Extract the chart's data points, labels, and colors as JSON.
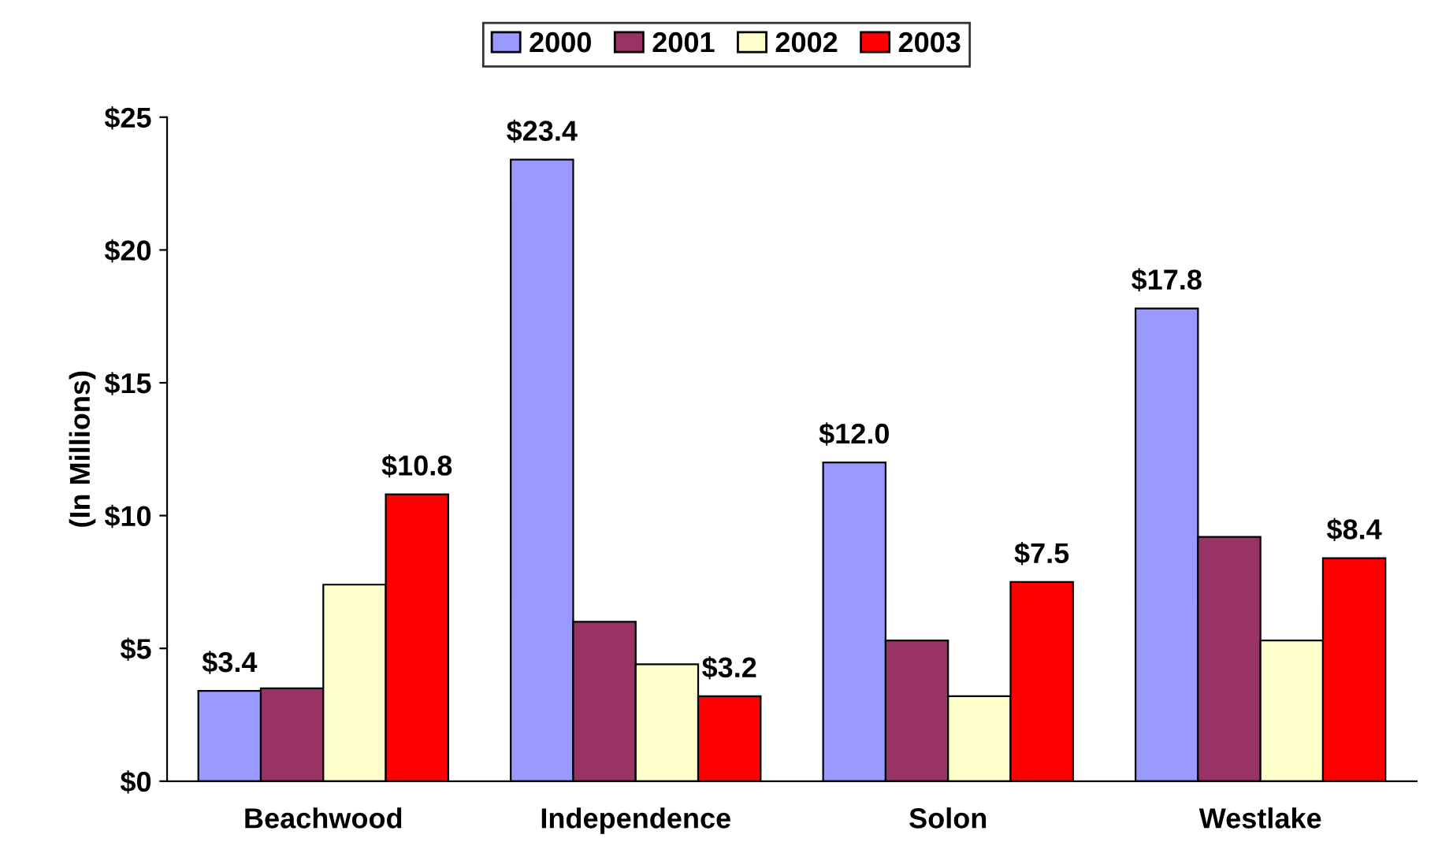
{
  "chart_data": {
    "type": "bar",
    "ylabel": "(In Millions)",
    "categories": [
      "Beachwood",
      "Independence",
      "Solon",
      "Westlake"
    ],
    "series": [
      {
        "name": "2000",
        "color": "#9999ff",
        "values": [
          3.4,
          23.4,
          12.0,
          17.8
        ],
        "value_labels": [
          "$3.4",
          "$23.4",
          "$12.0",
          "$17.8"
        ]
      },
      {
        "name": "2001",
        "color": "#993366",
        "values": [
          3.5,
          6.0,
          5.3,
          9.2
        ],
        "value_labels": [
          null,
          null,
          null,
          null
        ]
      },
      {
        "name": "2002",
        "color": "#ffffcc",
        "values": [
          7.4,
          4.4,
          3.2,
          5.3
        ],
        "value_labels": [
          null,
          null,
          null,
          null
        ]
      },
      {
        "name": "2003",
        "color": "#ff0000",
        "values": [
          10.8,
          3.2,
          7.5,
          8.4
        ],
        "value_labels": [
          "$10.8",
          "$3.2",
          "$7.5",
          "$8.4"
        ]
      }
    ],
    "ylim": [
      0,
      25
    ],
    "yticks": [
      {
        "value": 0,
        "label": "$0"
      },
      {
        "value": 5,
        "label": "$5"
      },
      {
        "value": 10,
        "label": "$10"
      },
      {
        "value": 15,
        "label": "$15"
      },
      {
        "value": 20,
        "label": "$20"
      },
      {
        "value": 25,
        "label": "$25"
      }
    ],
    "grid": false,
    "legend": "top"
  }
}
